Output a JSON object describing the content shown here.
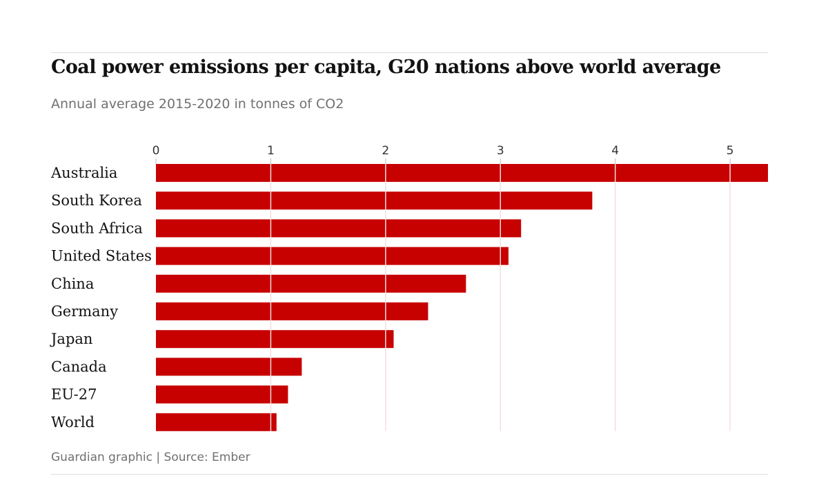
{
  "chart_data": {
    "type": "bar",
    "orientation": "horizontal",
    "title": "Coal power emissions per capita, G20 nations above world average",
    "subtitle": "Annual average 2015-2020 in tonnes of CO2",
    "source": "Guardian graphic | Source: Ember",
    "categories": [
      "Australia",
      "South Korea",
      "South Africa",
      "United States",
      "China",
      "Germany",
      "Japan",
      "Canada",
      "EU-27",
      "World"
    ],
    "values": [
      5.33,
      3.8,
      3.18,
      3.07,
      2.7,
      2.37,
      2.07,
      1.27,
      1.15,
      1.05
    ],
    "xlabel": "",
    "ylabel": "",
    "xlim": [
      0,
      5.33
    ],
    "xticks": [
      "0",
      "1",
      "2",
      "3",
      "4",
      "5"
    ],
    "grid": true,
    "bar_color": "#c70000"
  }
}
